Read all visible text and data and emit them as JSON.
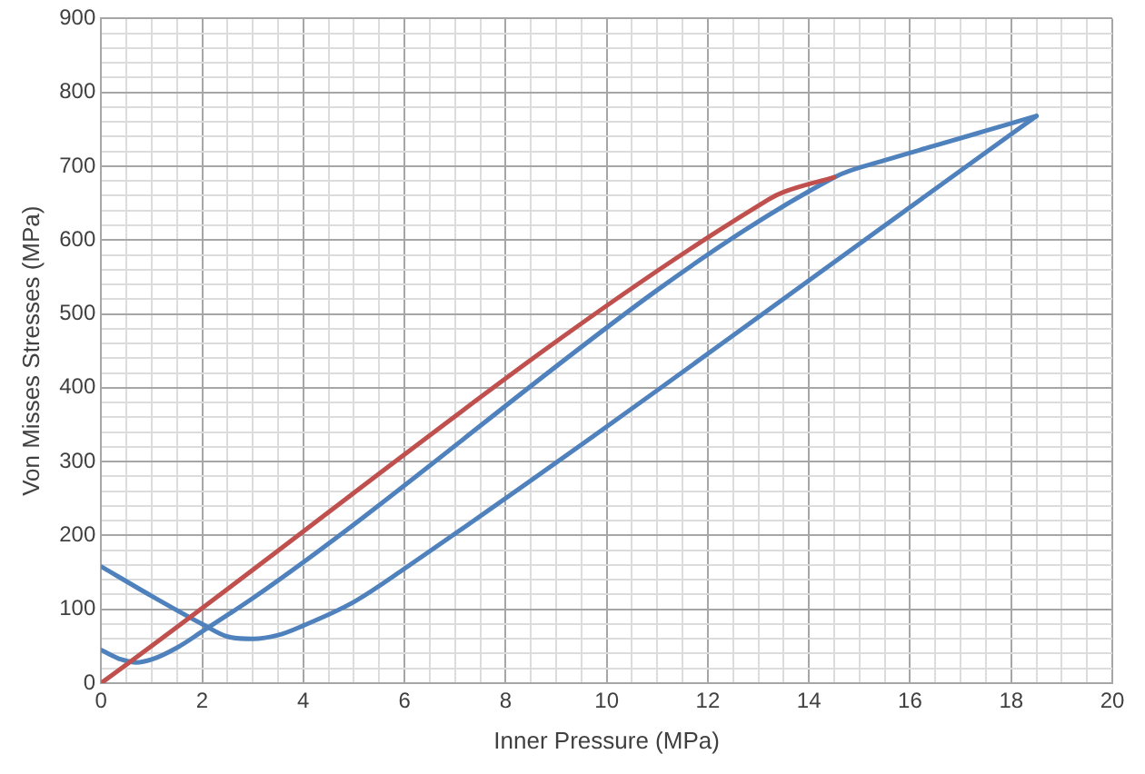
{
  "chart_data": {
    "type": "line",
    "xlabel": "Inner Pressure (MPa)",
    "ylabel": "Von Misses Stresses (MPa)",
    "xlim": [
      0,
      20
    ],
    "ylim": [
      0,
      900
    ],
    "xticks": [
      0,
      {
        "value": 0.5,
        "label": null
      },
      {
        "value": 1,
        "label": null
      },
      {
        "value": 1.5,
        "label": null
      },
      2,
      {
        "value": 2.5,
        "label": null
      },
      {
        "value": 3,
        "label": null
      },
      {
        "value": 3.5,
        "label": null
      },
      4,
      {
        "value": 4.5,
        "label": null
      },
      {
        "value": 5,
        "label": null
      },
      {
        "value": 5.5,
        "label": null
      },
      6,
      {
        "value": 6.5,
        "label": null
      },
      {
        "value": 7,
        "label": null
      },
      {
        "value": 7.5,
        "label": null
      },
      8,
      {
        "value": 8.5,
        "label": null
      },
      {
        "value": 9,
        "label": null
      },
      {
        "value": 9.5,
        "label": null
      },
      10,
      {
        "value": 10.5,
        "label": null
      },
      {
        "value": 11,
        "label": null
      },
      {
        "value": 11.5,
        "label": null
      },
      12,
      {
        "value": 12.5,
        "label": null
      },
      {
        "value": 13,
        "label": null
      },
      {
        "value": 13.5,
        "label": null
      },
      14,
      {
        "value": 14.5,
        "label": null
      },
      {
        "value": 15,
        "label": null
      },
      {
        "value": 15.5,
        "label": null
      },
      16,
      {
        "value": 16.5,
        "label": null
      },
      {
        "value": 17,
        "label": null
      },
      {
        "value": 17.5,
        "label": null
      },
      18,
      {
        "value": 18.5,
        "label": null
      },
      {
        "value": 19,
        "label": null
      },
      {
        "value": 19.5,
        "label": null
      },
      20
    ],
    "yticks": [
      0,
      {
        "value": 20,
        "label": null
      },
      {
        "value": 40,
        "label": null
      },
      {
        "value": 60,
        "label": null
      },
      {
        "value": 80,
        "label": null
      },
      100,
      {
        "value": 120,
        "label": null
      },
      {
        "value": 140,
        "label": null
      },
      {
        "value": 160,
        "label": null
      },
      {
        "value": 180,
        "label": null
      },
      200,
      {
        "value": 220,
        "label": null
      },
      {
        "value": 240,
        "label": null
      },
      {
        "value": 260,
        "label": null
      },
      {
        "value": 280,
        "label": null
      },
      300,
      {
        "value": 320,
        "label": null
      },
      {
        "value": 340,
        "label": null
      },
      {
        "value": 360,
        "label": null
      },
      {
        "value": 380,
        "label": null
      },
      400,
      {
        "value": 420,
        "label": null
      },
      {
        "value": 440,
        "label": null
      },
      {
        "value": 460,
        "label": null
      },
      {
        "value": 480,
        "label": null
      },
      500,
      {
        "value": 520,
        "label": null
      },
      {
        "value": 540,
        "label": null
      },
      {
        "value": 560,
        "label": null
      },
      {
        "value": 580,
        "label": null
      },
      600,
      {
        "value": 620,
        "label": null
      },
      {
        "value": 640,
        "label": null
      },
      {
        "value": 660,
        "label": null
      },
      {
        "value": 680,
        "label": null
      },
      700,
      {
        "value": 720,
        "label": null
      },
      {
        "value": 740,
        "label": null
      },
      {
        "value": 760,
        "label": null
      },
      {
        "value": 780,
        "label": null
      },
      800,
      {
        "value": 820,
        "label": null
      },
      {
        "value": 840,
        "label": null
      },
      {
        "value": 860,
        "label": null
      },
      {
        "value": 880,
        "label": null
      },
      900
    ],
    "grid": true,
    "legend": false,
    "marker": "none",
    "line_style": "solid",
    "series": [
      {
        "color": "#c0504d",
        "x": [
          0,
          13.2,
          13.5,
          14.5
        ],
        "values": [
          0,
          655,
          665,
          685
        ]
      },
      {
        "color": "#4f81bd",
        "x": [
          0,
          0.4,
          0.7,
          1,
          1.5,
          2,
          3,
          14.5,
          15.5,
          16.5,
          17.5,
          18.5
        ],
        "values": [
          45,
          32,
          28,
          32,
          48,
          70,
          115,
          685,
          708,
          728,
          748,
          768
        ]
      },
      {
        "color": "#4f81bd",
        "x": [
          0,
          1,
          2,
          2.5,
          3,
          3.5,
          4,
          5,
          6,
          18.5
        ],
        "values": [
          158,
          118,
          80,
          63,
          60,
          65,
          78,
          110,
          155,
          768
        ]
      }
    ]
  }
}
